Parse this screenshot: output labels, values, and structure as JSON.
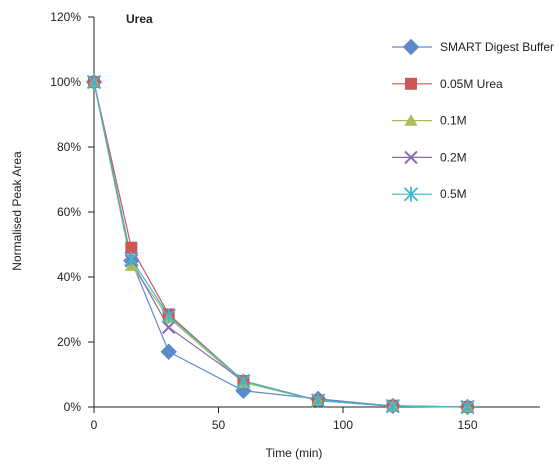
{
  "chart_data": {
    "type": "line",
    "title": "Urea",
    "xlabel": "Time (min)",
    "ylabel": "Normalised Peak Area",
    "xlim": [
      0,
      180
    ],
    "ylim": [
      0,
      120
    ],
    "x_ticks": [
      0,
      50,
      100,
      150
    ],
    "x_tick_labels": [
      "0",
      "50",
      "100",
      "150"
    ],
    "y_ticks": [
      0,
      20,
      40,
      60,
      80,
      100,
      120
    ],
    "y_tick_labels": [
      "0%",
      "20%",
      "40%",
      "60%",
      "80%",
      "100%",
      "120%"
    ],
    "grid": false,
    "legend_position": "right",
    "x": [
      0,
      15,
      30,
      60,
      90,
      120,
      150
    ],
    "series": [
      {
        "name": "SMART Digest Buffer",
        "marker": "diamond",
        "color": "#5b8bc9",
        "values": [
          100,
          45,
          17,
          5,
          2.5,
          0.3,
          0
        ]
      },
      {
        "name": "0.05M Urea",
        "marker": "square",
        "color": "#cf5656",
        "values": [
          100,
          49,
          28.5,
          8,
          2,
          0.4,
          0
        ]
      },
      {
        "name": "0.1M",
        "marker": "triangle",
        "color": "#a5c05a",
        "values": [
          100,
          43.5,
          27.5,
          7.5,
          2,
          0.3,
          0
        ]
      },
      {
        "name": "0.2M",
        "marker": "x",
        "color": "#8a6bb0",
        "values": [
          100,
          45,
          24.5,
          8,
          2,
          0.2,
          0
        ]
      },
      {
        "name": "0.5M",
        "marker": "star",
        "color": "#3fb6cf",
        "values": [
          100,
          45.5,
          28,
          8,
          2,
          0.3,
          0
        ]
      }
    ]
  }
}
